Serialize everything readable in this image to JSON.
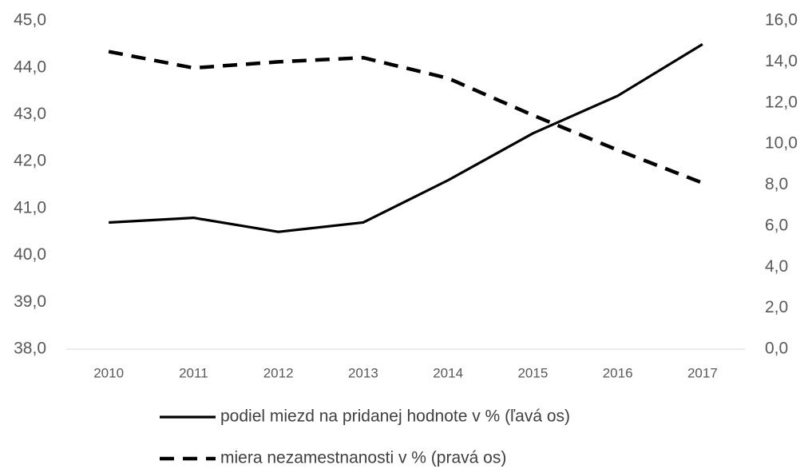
{
  "chart_data": {
    "type": "line",
    "categories": [
      "2010",
      "2011",
      "2012",
      "2013",
      "2014",
      "2015",
      "2016",
      "2017"
    ],
    "series": [
      {
        "name": "podiel miezd na pridanej hodnote v % (ľavá os)",
        "color": "#000000",
        "dash": "solid",
        "values": [
          40.7,
          40.8,
          40.5,
          40.7,
          41.6,
          42.6,
          43.4,
          44.5
        ]
      },
      {
        "name": "miera nezamestnanosti v % (pravá os)",
        "color": "#000000",
        "dash": "dashed",
        "axis": "y2",
        "values": [
          14.5,
          13.7,
          14.0,
          14.2,
          13.2,
          11.4,
          9.7,
          8.1
        ]
      }
    ],
    "ylim": [
      38,
      45
    ],
    "yticks": [
      {
        "value": 38,
        "label": "38,0"
      },
      {
        "value": 39,
        "label": "39,0"
      },
      {
        "value": 40,
        "label": "40,0"
      },
      {
        "value": 41,
        "label": "41,0"
      },
      {
        "value": 42,
        "label": "42,0"
      },
      {
        "value": 43,
        "label": "43,0"
      },
      {
        "value": 44,
        "label": "44,0"
      },
      {
        "value": 45,
        "label": "45,0"
      }
    ],
    "y2lim": [
      0,
      16
    ],
    "y2ticks": [
      {
        "value": 0,
        "label": "0,0"
      },
      {
        "value": 2,
        "label": "2,0"
      },
      {
        "value": 4,
        "label": "4,0"
      },
      {
        "value": 6,
        "label": "6,0"
      },
      {
        "value": 8,
        "label": "8,0"
      },
      {
        "value": 10,
        "label": "10,0"
      },
      {
        "value": 12,
        "label": "12,0"
      },
      {
        "value": 14,
        "label": "14,0"
      },
      {
        "value": 16,
        "label": "16,0"
      }
    ],
    "grid": false
  }
}
